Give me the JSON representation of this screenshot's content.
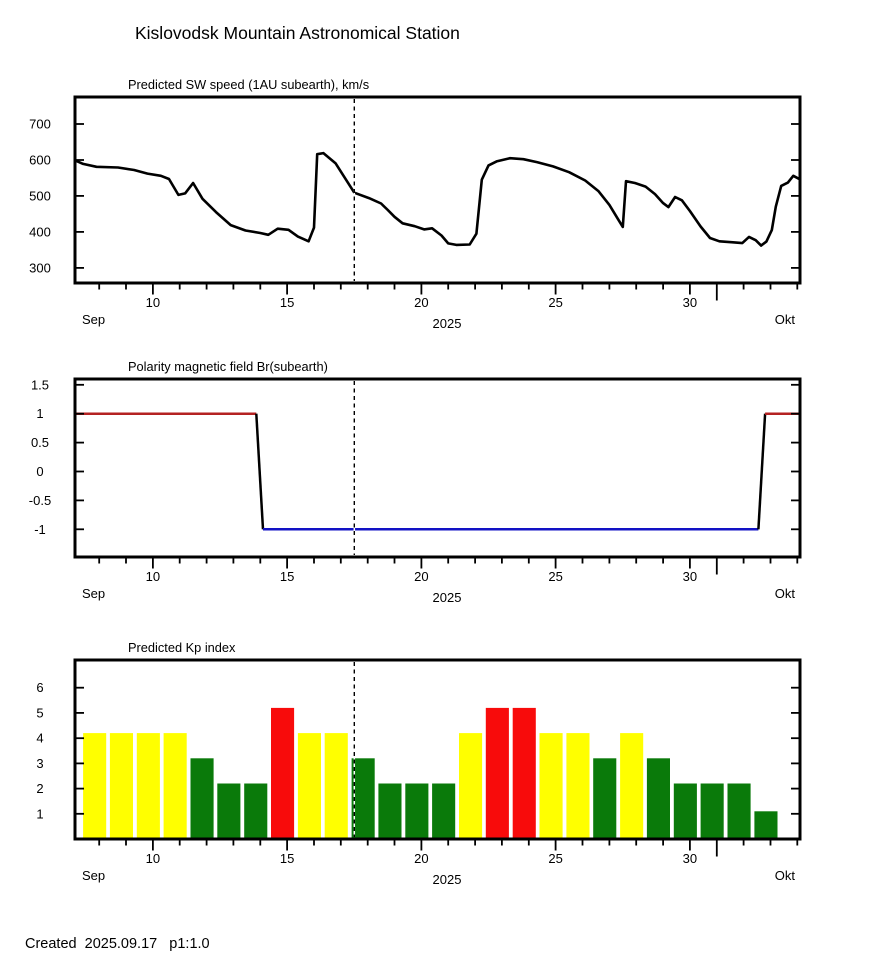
{
  "page": {
    "title": "Kislovodsk Mountain Astronomical Station",
    "footer_text": "Created  2025.09.17   p1:1.0"
  },
  "x_axis": {
    "start_day": 7.1,
    "end_day": 34.1,
    "labeled_days": [
      10,
      15,
      20,
      25,
      30
    ],
    "minor_tick_start": 8,
    "minor_tick_end": 34,
    "month_boundary_day": 31,
    "start_label": "Sep",
    "end_label": "Okt",
    "year_label": "2025",
    "now_day": 17.5,
    "note": "day-of-month in September 2025; days 31-34 fall in October"
  },
  "chart_data": [
    {
      "type": "line",
      "title": "Predicted SW speed (1AU subearth), km/s",
      "ylabel": "SW speed, km/s",
      "yticks": [
        300,
        400,
        500,
        600,
        700
      ],
      "ylim": [
        258,
        775
      ],
      "line_color": "#000000",
      "points": [
        [
          7.1,
          599
        ],
        [
          7.4,
          589
        ],
        [
          7.9,
          581
        ],
        [
          8.7,
          579
        ],
        [
          9.3,
          572
        ],
        [
          9.8,
          562
        ],
        [
          10.3,
          556
        ],
        [
          10.6,
          547
        ],
        [
          10.95,
          503
        ],
        [
          11.2,
          507
        ],
        [
          11.5,
          536
        ],
        [
          11.85,
          492
        ],
        [
          12.35,
          455
        ],
        [
          12.9,
          419
        ],
        [
          13.45,
          404
        ],
        [
          14.0,
          397
        ],
        [
          14.3,
          392
        ],
        [
          14.65,
          409
        ],
        [
          15.05,
          406
        ],
        [
          15.4,
          387
        ],
        [
          15.8,
          374
        ],
        [
          16.0,
          412
        ],
        [
          16.12,
          616
        ],
        [
          16.35,
          619
        ],
        [
          16.8,
          591
        ],
        [
          17.5,
          509
        ],
        [
          18.05,
          494
        ],
        [
          18.5,
          479
        ],
        [
          18.75,
          461
        ],
        [
          19.0,
          442
        ],
        [
          19.3,
          424
        ],
        [
          19.75,
          416
        ],
        [
          20.1,
          407
        ],
        [
          20.4,
          410
        ],
        [
          20.75,
          390
        ],
        [
          21.0,
          368
        ],
        [
          21.3,
          364
        ],
        [
          21.8,
          365
        ],
        [
          22.05,
          395
        ],
        [
          22.25,
          545
        ],
        [
          22.5,
          585
        ],
        [
          22.8,
          596
        ],
        [
          23.3,
          605
        ],
        [
          23.8,
          602
        ],
        [
          24.3,
          594
        ],
        [
          24.9,
          582
        ],
        [
          25.5,
          566
        ],
        [
          26.1,
          543
        ],
        [
          26.6,
          513
        ],
        [
          27.0,
          475
        ],
        [
          27.35,
          432
        ],
        [
          27.5,
          414
        ],
        [
          27.62,
          541
        ],
        [
          27.95,
          536
        ],
        [
          28.35,
          526
        ],
        [
          28.7,
          505
        ],
        [
          29.0,
          480
        ],
        [
          29.2,
          469
        ],
        [
          29.45,
          497
        ],
        [
          29.7,
          488
        ],
        [
          30.0,
          458
        ],
        [
          30.4,
          415
        ],
        [
          30.75,
          383
        ],
        [
          31.1,
          374
        ],
        [
          31.6,
          371
        ],
        [
          31.95,
          369
        ],
        [
          32.2,
          386
        ],
        [
          32.45,
          377
        ],
        [
          32.65,
          362
        ],
        [
          32.85,
          373
        ],
        [
          33.05,
          405
        ],
        [
          33.2,
          470
        ],
        [
          33.4,
          528
        ],
        [
          33.65,
          537
        ],
        [
          33.85,
          556
        ],
        [
          34.05,
          548
        ]
      ]
    },
    {
      "type": "line",
      "title": "Polarity magnetic field  Br(subearth)",
      "ylabel": "Br polarity",
      "yticks": [
        -1,
        -0.5,
        0,
        0.5,
        1,
        1.5
      ],
      "ylim": [
        -1.48,
        1.6
      ],
      "segments": [
        {
          "name": "positive-polarity-start",
          "color": "#B42222",
          "points": [
            [
              7.1,
              1
            ],
            [
              13.85,
              1
            ]
          ]
        },
        {
          "name": "transition-down",
          "color": "#000000",
          "points": [
            [
              13.85,
              1
            ],
            [
              14.1,
              -1
            ]
          ]
        },
        {
          "name": "negative-polarity",
          "color": "#1212C4",
          "points": [
            [
              14.1,
              -1
            ],
            [
              32.55,
              -1
            ]
          ]
        },
        {
          "name": "transition-up",
          "color": "#000000",
          "points": [
            [
              32.55,
              -1
            ],
            [
              32.8,
              1
            ]
          ]
        },
        {
          "name": "positive-polarity-end",
          "color": "#B42222",
          "points": [
            [
              32.8,
              1
            ],
            [
              34.1,
              1
            ]
          ]
        }
      ]
    },
    {
      "type": "bar",
      "title": "Predicted Kp index",
      "ylabel": "Kp",
      "yticks": [
        1,
        2,
        3,
        4,
        5,
        6
      ],
      "ylim": [
        0,
        7.1
      ],
      "level_colors": {
        "yellow": "#FFFF00",
        "green": "#0A7A0A",
        "red": "#F80B0B"
      },
      "bars": [
        {
          "day": 8,
          "kp": 4.2,
          "level": "yellow"
        },
        {
          "day": 9,
          "kp": 4.2,
          "level": "yellow"
        },
        {
          "day": 10,
          "kp": 4.2,
          "level": "yellow"
        },
        {
          "day": 11,
          "kp": 4.2,
          "level": "yellow"
        },
        {
          "day": 12,
          "kp": 3.2,
          "level": "green"
        },
        {
          "day": 13,
          "kp": 2.2,
          "level": "green"
        },
        {
          "day": 14,
          "kp": 2.2,
          "level": "green"
        },
        {
          "day": 15,
          "kp": 5.2,
          "level": "red"
        },
        {
          "day": 16,
          "kp": 4.2,
          "level": "yellow"
        },
        {
          "day": 17,
          "kp": 4.2,
          "level": "yellow"
        },
        {
          "day": 18,
          "kp": 3.2,
          "level": "green"
        },
        {
          "day": 19,
          "kp": 2.2,
          "level": "green"
        },
        {
          "day": 20,
          "kp": 2.2,
          "level": "green"
        },
        {
          "day": 21,
          "kp": 2.2,
          "level": "green"
        },
        {
          "day": 22,
          "kp": 4.2,
          "level": "yellow"
        },
        {
          "day": 23,
          "kp": 5.2,
          "level": "red"
        },
        {
          "day": 24,
          "kp": 5.2,
          "level": "red"
        },
        {
          "day": 25,
          "kp": 4.2,
          "level": "yellow"
        },
        {
          "day": 26,
          "kp": 4.2,
          "level": "yellow"
        },
        {
          "day": 27,
          "kp": 3.2,
          "level": "green"
        },
        {
          "day": 28,
          "kp": 4.2,
          "level": "yellow"
        },
        {
          "day": 29,
          "kp": 3.2,
          "level": "green"
        },
        {
          "day": 30,
          "kp": 2.2,
          "level": "green"
        },
        {
          "day": 31,
          "kp": 2.2,
          "level": "green"
        },
        {
          "day": 32,
          "kp": 2.2,
          "level": "green"
        },
        {
          "day": 33,
          "kp": 1.1,
          "level": "green"
        }
      ]
    }
  ]
}
